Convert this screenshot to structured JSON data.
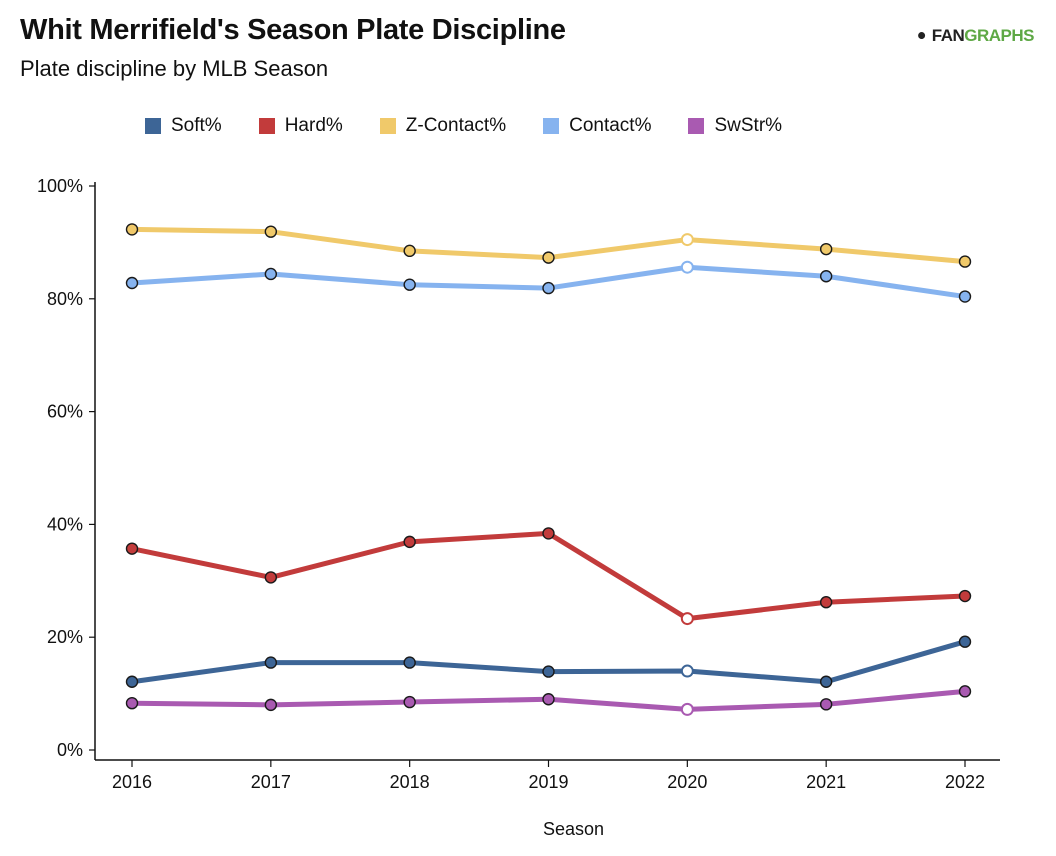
{
  "header": {
    "title": "Whit Merrifield's Season Plate Discipline",
    "subtitle": "Plate discipline by MLB Season",
    "logo_fan": "FAN",
    "logo_graphs": "GRAPHS",
    "logo_icon": "fangraphs-logo-icon"
  },
  "chart_data": {
    "type": "line",
    "title": "Whit Merrifield's Season Plate Discipline",
    "subtitle": "Plate discipline by MLB Season",
    "xlabel": "Season",
    "ylabel": "",
    "categories": [
      "2016",
      "2017",
      "2018",
      "2019",
      "2020",
      "2021",
      "2022"
    ],
    "ylim": [
      0,
      100
    ],
    "yticks": [
      0,
      20,
      40,
      60,
      80,
      100
    ],
    "ytick_labels": [
      "0%",
      "20%",
      "40%",
      "60%",
      "80%",
      "100%"
    ],
    "grid": false,
    "legend_position": "top",
    "highlight_category": "2020",
    "series": [
      {
        "name": "Soft%",
        "color": "#3d6596",
        "values": [
          12.1,
          15.5,
          15.5,
          13.9,
          14.0,
          12.1,
          19.2
        ]
      },
      {
        "name": "Hard%",
        "color": "#c23b3b",
        "values": [
          35.7,
          30.6,
          36.9,
          38.4,
          23.3,
          26.2,
          27.3
        ]
      },
      {
        "name": "Z-Contact%",
        "color": "#f0c96a",
        "values": [
          92.3,
          91.9,
          88.5,
          87.3,
          90.5,
          88.8,
          86.6
        ]
      },
      {
        "name": "Contact%",
        "color": "#86b3ef",
        "values": [
          82.8,
          84.4,
          82.5,
          81.9,
          85.6,
          84.0,
          80.4
        ]
      },
      {
        "name": "SwStr%",
        "color": "#a95ab1",
        "values": [
          8.3,
          8.0,
          8.5,
          9.0,
          7.2,
          8.1,
          10.4
        ]
      }
    ]
  }
}
